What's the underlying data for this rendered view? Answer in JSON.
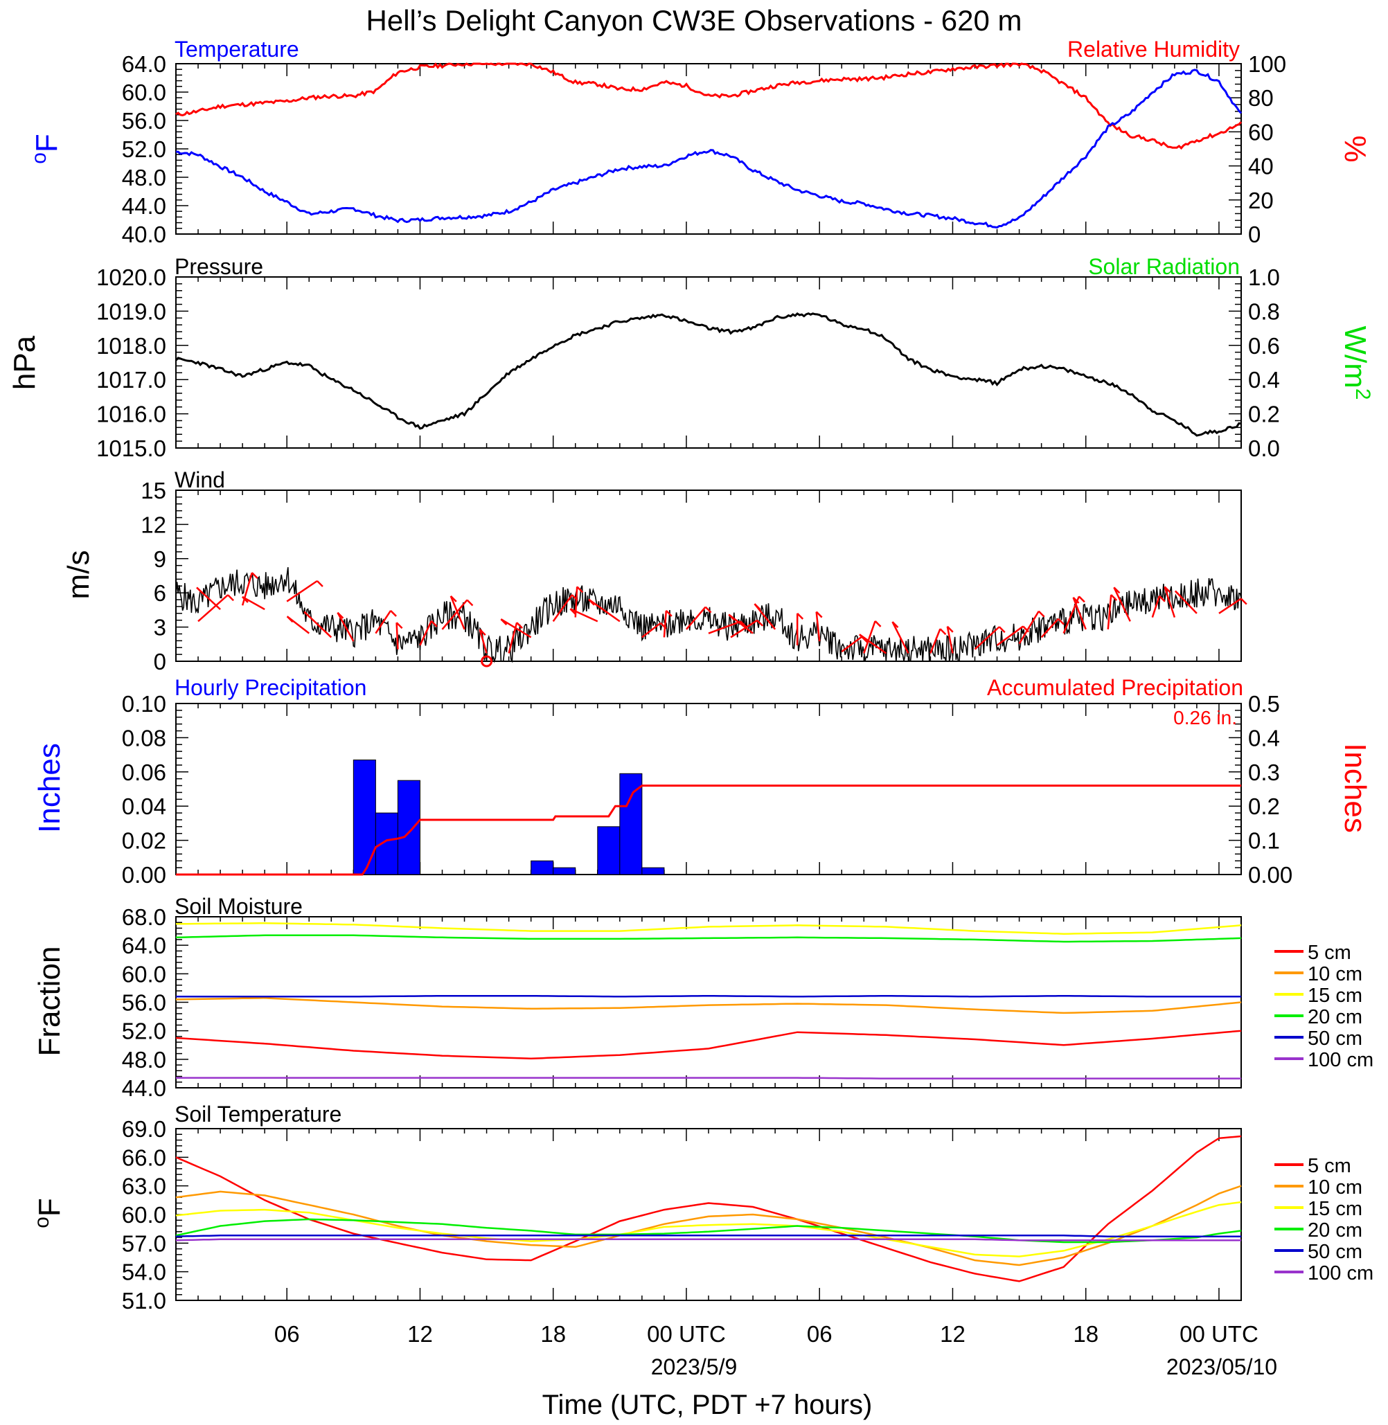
{
  "title": "Hell’s Delight Canyon CW3E Observations - 620 m",
  "xlabel": "Time (UTC, PDT +7 hours)",
  "x_ticks": [
    "06",
    "12",
    "18",
    "00 UTC",
    "06",
    "12",
    "18",
    "00 UTC"
  ],
  "x_dates": [
    "2023/5/9",
    "2023/05/10"
  ],
  "colors": {
    "temperature": "#0000ff",
    "humidity": "#ff0000",
    "pressure": "#000000",
    "solar": "#00dd00",
    "wind": "#000000",
    "barb": "#ff0000",
    "hourly": "#0000ff",
    "accum": "#ff0000",
    "d5": "#ff0000",
    "d10": "#ff9900",
    "d15": "#ffff00",
    "d20": "#00ee00",
    "d50": "#0000cc",
    "d100": "#9933cc"
  },
  "panels": {
    "temp": {
      "left_title": "Temperature",
      "right_title": "Relative Humidity",
      "left_unit": "oF",
      "right_unit": "%"
    },
    "pressure": {
      "left_title": "Pressure",
      "right_title": "Solar Radiation",
      "left_unit": "hPa",
      "right_unit": "W/m2"
    },
    "wind": {
      "left_title": "Wind",
      "left_unit": "m/s"
    },
    "precip": {
      "left_title": "Hourly Precipitation",
      "right_title": "Accumulated Precipitation",
      "left_unit": "Inches",
      "right_unit": "Inches",
      "total": "0.26 in."
    },
    "soil_moist": {
      "left_title": "Soil Moisture",
      "left_unit": "Fraction"
    },
    "soil_temp": {
      "left_title": "Soil Temperature",
      "left_unit": "oF"
    }
  },
  "legend": [
    "5 cm",
    "10 cm",
    "15 cm",
    "20 cm",
    "50 cm",
    "100 cm"
  ],
  "chart_data": [
    {
      "type": "line",
      "title": "Temperature / Relative Humidity",
      "x_units": "hours since 2023-05-08 01 UTC",
      "xlim": [
        0,
        48
      ],
      "ylim": [
        40,
        64
      ],
      "y_ticks": [
        "40.0",
        "44.0",
        "48.0",
        "52.0",
        "56.0",
        "60.0",
        "64.0"
      ],
      "y2lim": [
        0,
        100
      ],
      "y2_ticks": [
        "0",
        "20",
        "40",
        "60",
        "80",
        "100"
      ],
      "series": [
        {
          "name": "Temperature",
          "axis": "left",
          "x": [
            0,
            1,
            2,
            3,
            4,
            5,
            6,
            7,
            8,
            9,
            10,
            11,
            12,
            13,
            14,
            15,
            16,
            17,
            18,
            19,
            20,
            21,
            22,
            23,
            24,
            25,
            26,
            27,
            28,
            29,
            30,
            31,
            32,
            33,
            34,
            35,
            36,
            37,
            38,
            39,
            40,
            41,
            42,
            43,
            44,
            45,
            46,
            47,
            48
          ],
          "y": [
            51.6,
            51.2,
            49.5,
            48,
            46,
            44.5,
            42.8,
            43.2,
            43.6,
            42.6,
            41.9,
            42,
            42.3,
            42.4,
            42.6,
            43.2,
            44.5,
            46.2,
            47.2,
            48.2,
            49.2,
            49.5,
            49.6,
            51,
            51.8,
            51,
            49,
            47.5,
            46.2,
            45.4,
            44.6,
            44.3,
            43.5,
            42.9,
            42.6,
            42.2,
            41.6,
            41.1,
            42.2,
            45,
            48,
            51,
            55,
            57,
            60,
            62.5,
            63,
            61.5,
            56.8
          ]
        },
        {
          "name": "Relative Humidity",
          "axis": "right",
          "x": [
            0,
            1,
            2,
            3,
            4,
            5,
            6,
            7,
            8,
            9,
            10,
            11,
            12,
            13,
            14,
            15,
            16,
            17,
            18,
            19,
            20,
            21,
            22,
            23,
            24,
            25,
            26,
            27,
            28,
            29,
            30,
            31,
            32,
            33,
            34,
            35,
            36,
            37,
            38,
            39,
            40,
            41,
            42,
            43,
            44,
            45,
            46,
            47,
            48
          ],
          "y": [
            70,
            72,
            75,
            76,
            77,
            78,
            80,
            81,
            81,
            84,
            95,
            98,
            99,
            100,
            100,
            100,
            100,
            95,
            89,
            88,
            85,
            85,
            89,
            87,
            81,
            81,
            84,
            87,
            89,
            90,
            91,
            91,
            92,
            94,
            95,
            97,
            98,
            99,
            100,
            96,
            88,
            80,
            65,
            58,
            55,
            50,
            55,
            59,
            65
          ]
        }
      ]
    },
    {
      "type": "line",
      "title": "Pressure / Solar Radiation",
      "x_units": "hours since 2023-05-08 01 UTC",
      "xlim": [
        0,
        48
      ],
      "ylim": [
        1015,
        1020
      ],
      "y_ticks": [
        "1015.0",
        "1016.0",
        "1017.0",
        "1018.0",
        "1019.0",
        "1020.0"
      ],
      "y2lim": [
        0,
        1
      ],
      "y2_ticks": [
        "0.0",
        "0.2",
        "0.4",
        "0.6",
        "0.8",
        "1.0"
      ],
      "series": [
        {
          "name": "Pressure",
          "axis": "left",
          "x": [
            0,
            1,
            2,
            3,
            4,
            5,
            6,
            7,
            8,
            9,
            10,
            11,
            12,
            13,
            14,
            15,
            16,
            17,
            18,
            19,
            20,
            21,
            22,
            23,
            24,
            25,
            26,
            27,
            28,
            29,
            30,
            31,
            32,
            33,
            34,
            35,
            36,
            37,
            38,
            39,
            40,
            41,
            42,
            43,
            44,
            45,
            46,
            47,
            48
          ],
          "y": [
            1017.6,
            1017.5,
            1017.3,
            1017.1,
            1017.3,
            1017.5,
            1017.4,
            1017.0,
            1016.7,
            1016.3,
            1015.9,
            1015.6,
            1015.8,
            1016.0,
            1016.6,
            1017.2,
            1017.6,
            1018.0,
            1018.3,
            1018.5,
            1018.7,
            1018.8,
            1018.9,
            1018.7,
            1018.5,
            1018.4,
            1018.5,
            1018.8,
            1018.9,
            1018.9,
            1018.6,
            1018.5,
            1018.2,
            1017.6,
            1017.3,
            1017.1,
            1017.0,
            1016.9,
            1017.3,
            1017.4,
            1017.3,
            1017.1,
            1016.9,
            1016.6,
            1016.1,
            1015.8,
            1015.4,
            1015.5,
            1015.7
          ]
        }
      ]
    },
    {
      "type": "line",
      "title": "Wind",
      "x_units": "hours since 2023-05-08 01 UTC",
      "xlim": [
        0,
        48
      ],
      "ylim": [
        0,
        15
      ],
      "y_ticks": [
        "0",
        "3",
        "6",
        "9",
        "12",
        "15"
      ],
      "series": [
        {
          "name": "Wind speed",
          "x": [
            0,
            1,
            2,
            3,
            4,
            5,
            6,
            7,
            8,
            9,
            10,
            11,
            12,
            13,
            14,
            15,
            16,
            17,
            18,
            19,
            20,
            21,
            22,
            23,
            24,
            25,
            26,
            27,
            28,
            29,
            30,
            31,
            32,
            33,
            34,
            35,
            36,
            37,
            38,
            39,
            40,
            41,
            42,
            43,
            44,
            45,
            46,
            47,
            48
          ],
          "y": [
            6,
            5,
            6.5,
            7,
            6.5,
            7.5,
            3.5,
            3,
            2.5,
            3.5,
            1.5,
            2,
            4,
            4,
            1,
            1,
            3,
            5,
            5.5,
            5,
            5,
            3,
            3,
            4,
            3.5,
            3,
            3.5,
            4,
            2,
            2.5,
            1.2,
            1,
            1,
            1,
            1,
            1,
            1.5,
            2,
            2.2,
            3,
            3.5,
            4,
            4,
            5,
            5.5,
            5.5,
            6,
            6,
            5.5
          ]
        }
      ]
    },
    {
      "type": "bar",
      "title": "Hourly Precipitation / Accumulated Precipitation",
      "x_units": "hours since 2023-05-08 01 UTC",
      "xlim": [
        0,
        48
      ],
      "ylim": [
        0,
        0.1
      ],
      "y_ticks": [
        "0.00",
        "0.02",
        "0.04",
        "0.06",
        "0.08",
        "0.10"
      ],
      "y2lim": [
        0,
        0.5
      ],
      "y2_ticks": [
        "0.00",
        "0.1",
        "0.2",
        "0.3",
        "0.4",
        "0.5"
      ],
      "bars": {
        "name": "Hourly Precipitation",
        "x_start": [
          8,
          9,
          10,
          16,
          17,
          19,
          20,
          21
        ],
        "values": [
          0.067,
          0.036,
          0.055,
          0.008,
          0.004,
          0.028,
          0.059,
          0.004
        ]
      },
      "series": [
        {
          "name": "Accumulated Precipitation",
          "axis": "right",
          "x": [
            0,
            8.4,
            8.6,
            9,
            9.5,
            10,
            10.3,
            10.6,
            11,
            17,
            17.1,
            19.5,
            19.8,
            20.3,
            20.6,
            21,
            48
          ],
          "y": [
            0,
            0,
            0.02,
            0.08,
            0.1,
            0.105,
            0.11,
            0.13,
            0.16,
            0.16,
            0.17,
            0.17,
            0.2,
            0.2,
            0.24,
            0.26,
            0.26
          ]
        }
      ]
    },
    {
      "type": "line",
      "title": "Soil Moisture",
      "x_units": "hours since 2023-05-08 01 UTC",
      "xlim": [
        0,
        48
      ],
      "ylim": [
        44,
        68
      ],
      "y_ticks": [
        "44.0",
        "48.0",
        "52.0",
        "56.0",
        "60.0",
        "64.0",
        "68.0"
      ],
      "x": [
        0,
        4,
        8,
        12,
        16,
        20,
        24,
        28,
        32,
        36,
        40,
        44,
        48
      ],
      "series": [
        {
          "name": "5 cm",
          "y": [
            51,
            50.2,
            49.2,
            48.5,
            48.1,
            48.6,
            49.5,
            51.8,
            51.4,
            50.8,
            50,
            50.9,
            52
          ]
        },
        {
          "name": "10 cm",
          "y": [
            56.4,
            56.6,
            56,
            55.4,
            55.1,
            55.2,
            55.6,
            55.8,
            55.6,
            55,
            54.5,
            54.8,
            56
          ]
        },
        {
          "name": "15 cm",
          "y": [
            67,
            67.1,
            66.9,
            66.4,
            66,
            66,
            66.6,
            66.8,
            66.6,
            66,
            65.6,
            65.8,
            66.8
          ]
        },
        {
          "name": "20 cm",
          "y": [
            65.1,
            65.4,
            65.4,
            65.1,
            64.9,
            64.9,
            65,
            65.1,
            65,
            64.8,
            64.5,
            64.6,
            65
          ]
        },
        {
          "name": "50 cm",
          "y": [
            56.8,
            56.8,
            56.8,
            56.9,
            56.9,
            56.8,
            56.9,
            56.8,
            56.9,
            56.8,
            56.9,
            56.8,
            56.8
          ]
        },
        {
          "name": "100 cm",
          "y": [
            45.4,
            45.4,
            45.4,
            45.4,
            45.4,
            45.4,
            45.4,
            45.4,
            45.3,
            45.3,
            45.3,
            45.3,
            45.3
          ]
        }
      ]
    },
    {
      "type": "line",
      "title": "Soil Temperature",
      "x_units": "hours since 2023-05-08 01 UTC",
      "xlim": [
        0,
        48
      ],
      "ylim": [
        51,
        69
      ],
      "y_ticks": [
        "51.0",
        "54.0",
        "57.0",
        "60.0",
        "63.0",
        "66.0",
        "69.0"
      ],
      "x": [
        0,
        2,
        4,
        6,
        8,
        10,
        12,
        14,
        16,
        18,
        20,
        22,
        24,
        26,
        28,
        30,
        32,
        34,
        36,
        38,
        40,
        42,
        44,
        46,
        47,
        48
      ],
      "series": [
        {
          "name": "5 cm",
          "y": [
            66,
            64,
            61.5,
            59.5,
            58,
            57,
            56,
            55.3,
            55.2,
            57.2,
            59.3,
            60.5,
            61.2,
            60.8,
            59.5,
            58,
            56.5,
            55,
            53.8,
            53,
            54.5,
            59,
            62.5,
            66.5,
            68,
            68.2
          ]
        },
        {
          "name": "10 cm",
          "y": [
            61.8,
            62.4,
            62,
            61,
            60,
            58.8,
            57.8,
            57.2,
            56.8,
            56.6,
            57.8,
            59,
            59.8,
            60,
            59.5,
            58.6,
            57.6,
            56.5,
            55.2,
            54.7,
            55.5,
            57,
            58.8,
            61,
            62.2,
            63
          ]
        },
        {
          "name": "15 cm",
          "y": [
            59.9,
            60.4,
            60.5,
            60.2,
            59.4,
            58.6,
            58,
            57.5,
            57.2,
            57.4,
            57.9,
            58.7,
            58.9,
            59,
            58.8,
            58.2,
            57.4,
            56.6,
            55.8,
            55.6,
            56.2,
            57.4,
            58.8,
            60.3,
            61,
            61.3
          ]
        },
        {
          "name": "20 cm",
          "y": [
            57.8,
            58.8,
            59.3,
            59.5,
            59.4,
            59.2,
            59,
            58.6,
            58.3,
            57.9,
            57.9,
            58,
            58.2,
            58.5,
            58.8,
            58.6,
            58.3,
            58,
            57.7,
            57.3,
            57.1,
            57.1,
            57.3,
            57.6,
            58,
            58.3
          ]
        },
        {
          "name": "50 cm",
          "y": [
            57.7,
            57.8,
            57.8,
            57.8,
            57.8,
            57.8,
            57.8,
            57.8,
            57.8,
            57.8,
            57.8,
            57.8,
            57.8,
            57.8,
            57.8,
            57.8,
            57.8,
            57.8,
            57.8,
            57.8,
            57.8,
            57.7,
            57.7,
            57.7,
            57.7,
            57.7
          ]
        },
        {
          "name": "100 cm",
          "y": [
            57.3,
            57.4,
            57.4,
            57.4,
            57.4,
            57.4,
            57.4,
            57.4,
            57.4,
            57.4,
            57.4,
            57.4,
            57.4,
            57.4,
            57.4,
            57.4,
            57.4,
            57.4,
            57.4,
            57.3,
            57.3,
            57.3,
            57.3,
            57.3,
            57.3,
            57.3
          ]
        }
      ]
    }
  ]
}
